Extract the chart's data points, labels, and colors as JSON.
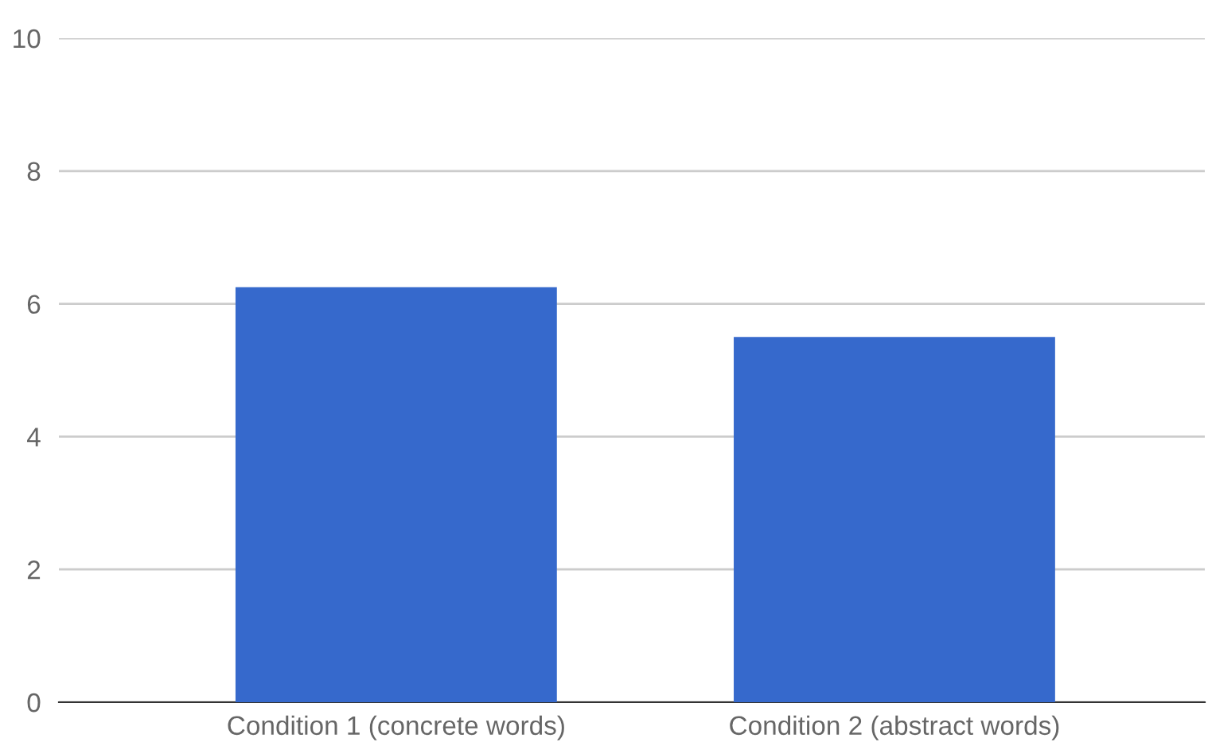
{
  "chart_data": {
    "type": "bar",
    "categories": [
      "Condition 1 (concrete words)",
      "Condition 2 (abstract words)"
    ],
    "values": [
      6.25,
      5.5
    ],
    "color": "#3669cc",
    "ylim": [
      0,
      10
    ],
    "yticks": [
      0,
      2,
      4,
      6,
      8,
      10
    ],
    "grid": "y",
    "legend": false
  }
}
